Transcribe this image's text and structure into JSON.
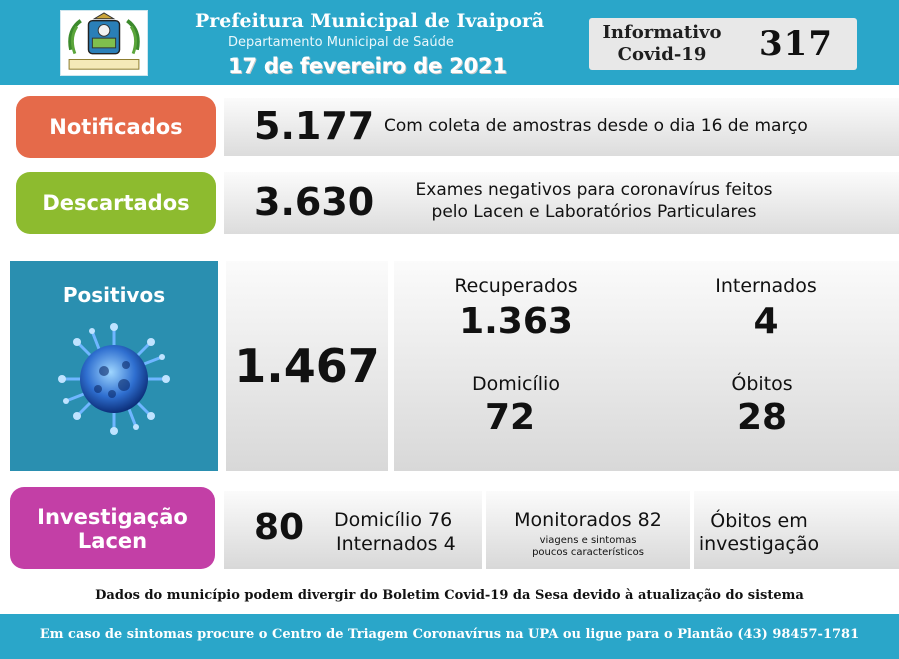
{
  "header": {
    "title": "Prefeitura Municipal de Ivaiporã",
    "department": "Departamento Municipal de Saúde",
    "date": "17 de fevereiro de 2021",
    "info_label_line1": "Informativo",
    "info_label_line2": "Covid-19",
    "edition_number": "317",
    "logo_icon": "municipal-coat-of-arms"
  },
  "notificados": {
    "label": "Notificados",
    "value": "5.177",
    "description": "Com coleta de amostras desde o dia 16 de março"
  },
  "descartados": {
    "label": "Descartados",
    "value": "3.630",
    "description_line1": "Exames negativos para coronavírus feitos",
    "description_line2": "pelo Lacen e Laboratórios Particulares"
  },
  "positivos": {
    "label": "Positivos",
    "icon": "coronavirus-icon",
    "total": "1.467",
    "recuperados_label": "Recuperados",
    "recuperados_value": "1.363",
    "internados_label": "Internados",
    "internados_value": "4",
    "domicilio_label": "Domicílio",
    "domicilio_value": "72",
    "obitos_label": "Óbitos",
    "obitos_value": "28"
  },
  "investigacao": {
    "label_line1": "Investigação",
    "label_line2": "Lacen",
    "total": "80",
    "domicilio": "Domicílio 76",
    "internados": "Internados 4",
    "monitorados": "Monitorados 82",
    "monitorados_note_line1": "viagens e sintomas",
    "monitorados_note_line2": "poucos característicos",
    "obitos_line1": "Óbitos em",
    "obitos_line2": "investigação"
  },
  "disclaimer": "Dados do município podem divergir do Boletim Covid-19 da Sesa devido à atualização do sistema",
  "footer": "Em caso de sintomas procure o Centro de Triagem Coronavírus na UPA ou ligue para o Plantão (43) 98457-1781",
  "colors": {
    "header_blue": "#2aa6c9",
    "notificados": "#e56a4a",
    "descartados": "#8dbb2f",
    "positivos": "#2a8fb0",
    "investigacao": "#c33fa6"
  }
}
